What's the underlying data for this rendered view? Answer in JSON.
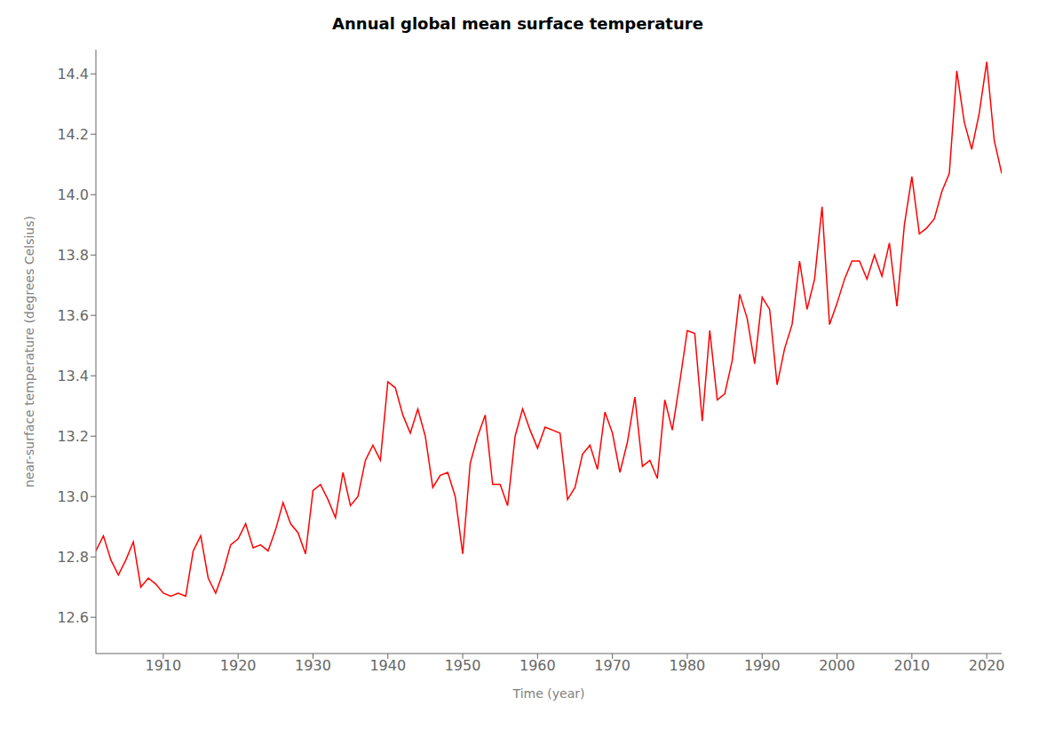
{
  "chart_data": {
    "type": "line",
    "title": "Annual global mean surface temperature",
    "xlabel": "Time (year)",
    "ylabel": "near-surface temperature (degrees Celsius)",
    "color": "#ff0000",
    "grid": false,
    "xlim": [
      1901,
      2022
    ],
    "ylim": [
      12.48,
      14.48
    ],
    "xticks": [
      1910,
      1920,
      1930,
      1940,
      1950,
      1960,
      1970,
      1980,
      1990,
      2000,
      2010,
      2020
    ],
    "yticks": [
      12.6,
      12.8,
      {
        "value": 13,
        "label": "13.0"
      },
      13.2,
      13.4,
      13.6,
      13.8,
      {
        "value": 14,
        "label": "14.0"
      },
      14.2,
      14.4
    ],
    "x": [
      1901,
      1902,
      1903,
      1904,
      1905,
      1906,
      1907,
      1908,
      1909,
      1910,
      1911,
      1912,
      1913,
      1914,
      1915,
      1916,
      1917,
      1918,
      1919,
      1920,
      1921,
      1922,
      1923,
      1924,
      1925,
      1926,
      1927,
      1928,
      1929,
      1930,
      1931,
      1932,
      1933,
      1934,
      1935,
      1936,
      1937,
      1938,
      1939,
      1940,
      1941,
      1942,
      1943,
      1944,
      1945,
      1946,
      1947,
      1948,
      1949,
      1950,
      1951,
      1952,
      1953,
      1954,
      1955,
      1956,
      1957,
      1958,
      1959,
      1960,
      1961,
      1962,
      1963,
      1964,
      1965,
      1966,
      1967,
      1968,
      1969,
      1970,
      1971,
      1972,
      1973,
      1974,
      1975,
      1976,
      1977,
      1978,
      1979,
      1980,
      1981,
      1982,
      1983,
      1984,
      1985,
      1986,
      1987,
      1988,
      1989,
      1990,
      1991,
      1992,
      1993,
      1994,
      1995,
      1996,
      1997,
      1998,
      1999,
      2000,
      2001,
      2002,
      2003,
      2004,
      2005,
      2006,
      2007,
      2008,
      2009,
      2010,
      2011,
      2012,
      2013,
      2014,
      2015,
      2016,
      2017,
      2018,
      2019,
      2020,
      2021,
      2022
    ],
    "values": [
      12.82,
      12.87,
      12.79,
      12.74,
      12.79,
      12.85,
      12.7,
      12.73,
      12.71,
      12.68,
      12.67,
      12.68,
      12.67,
      12.82,
      12.87,
      12.73,
      12.68,
      12.75,
      12.84,
      12.86,
      12.91,
      12.83,
      12.84,
      12.82,
      12.89,
      12.98,
      12.91,
      12.88,
      12.81,
      13.02,
      13.04,
      12.99,
      12.93,
      13.08,
      12.97,
      13.0,
      13.12,
      13.17,
      13.12,
      13.38,
      13.36,
      13.27,
      13.21,
      13.29,
      13.2,
      13.03,
      13.07,
      13.08,
      13.0,
      12.81,
      13.11,
      13.2,
      13.27,
      13.04,
      13.04,
      12.97,
      13.2,
      13.29,
      13.22,
      13.16,
      13.23,
      13.22,
      13.21,
      12.99,
      13.03,
      13.14,
      13.17,
      13.09,
      13.28,
      13.21,
      13.08,
      13.18,
      13.33,
      13.1,
      13.12,
      13.06,
      13.32,
      13.22,
      13.38,
      13.55,
      13.54,
      13.25,
      13.55,
      13.32,
      13.34,
      13.45,
      13.67,
      13.59,
      13.44,
      13.66,
      13.62,
      13.37,
      13.49,
      13.57,
      13.78,
      13.62,
      13.72,
      13.96,
      13.57,
      13.64,
      13.72,
      13.78,
      13.78,
      13.72,
      13.8,
      13.73,
      13.84,
      13.63,
      13.9,
      14.06,
      13.87,
      13.89,
      13.92,
      14.01,
      14.07,
      14.41,
      14.24,
      14.15,
      14.27,
      14.44,
      14.18,
      14.07
    ]
  }
}
